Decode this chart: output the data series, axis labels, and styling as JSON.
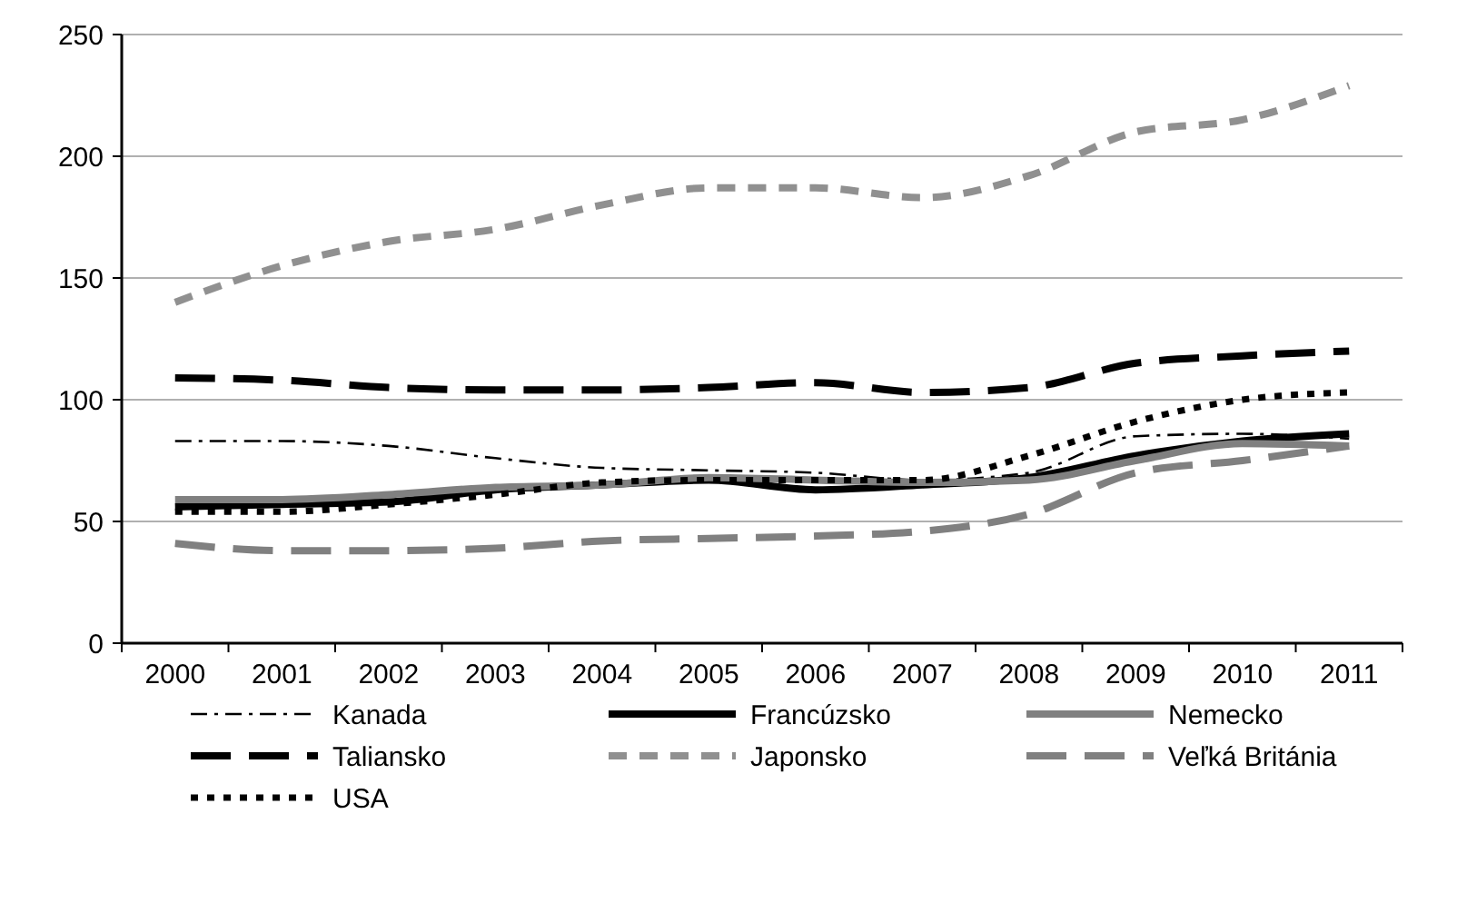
{
  "chart_data": {
    "type": "line",
    "categories": [
      "2000",
      "2001",
      "2002",
      "2003",
      "2004",
      "2005",
      "2006",
      "2007",
      "2008",
      "2009",
      "2010",
      "2011"
    ],
    "ylim": [
      0,
      250
    ],
    "yticks": [
      0,
      50,
      100,
      150,
      200,
      250
    ],
    "grid": "y",
    "legend": "bottom",
    "series": [
      {
        "name": "Kanada",
        "color": "#000000",
        "line_style": "dashdot",
        "values": [
          83,
          83,
          81,
          76,
          72,
          71,
          70,
          67,
          70,
          85,
          86,
          84
        ]
      },
      {
        "name": "Francúzsko",
        "color": "#000000",
        "line_style": "solid",
        "values": [
          56,
          57,
          58,
          63,
          65,
          67,
          63,
          65,
          68,
          77,
          83,
          86
        ]
      },
      {
        "name": "Nemecko",
        "color": "#808080",
        "line_style": "solid",
        "values": [
          59,
          59,
          61,
          64,
          65,
          68,
          67,
          66,
          67,
          75,
          82,
          81
        ]
      },
      {
        "name": "Taliansko",
        "color": "#000000",
        "line_style": "dashed",
        "values": [
          109,
          108,
          105,
          104,
          104,
          105,
          107,
          103,
          105,
          115,
          118,
          120
        ]
      },
      {
        "name": "Japonsko",
        "color": "#909090",
        "line_style": "shortdash",
        "values": [
          140,
          155,
          165,
          170,
          180,
          187,
          187,
          183,
          192,
          210,
          215,
          229
        ]
      },
      {
        "name": "Veľká Británia",
        "color": "#808080",
        "line_style": "dashed",
        "values": [
          41,
          38,
          38,
          39,
          42,
          43,
          44,
          46,
          53,
          70,
          75,
          81
        ]
      },
      {
        "name": "USA",
        "color": "#000000",
        "line_style": "dotted",
        "values": [
          54,
          54,
          57,
          61,
          66,
          67,
          67,
          67,
          77,
          91,
          100,
          103
        ]
      }
    ]
  }
}
